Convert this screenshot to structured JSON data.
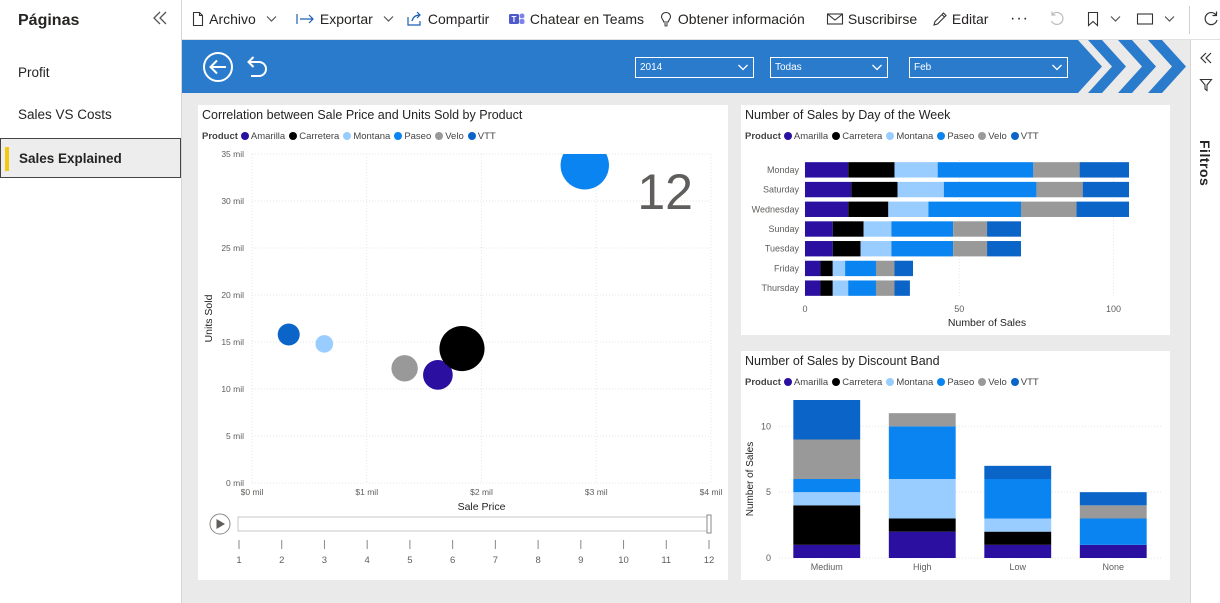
{
  "pages_pane": {
    "title": "Páginas",
    "items": [
      {
        "label": "Profit",
        "active": false
      },
      {
        "label": "Sales VS Costs",
        "active": false
      },
      {
        "label": "Sales Explained",
        "active": true
      }
    ]
  },
  "toolbar": {
    "file_label": "Archivo",
    "export_label": "Exportar",
    "share_label": "Compartir",
    "teams_label": "Chatear en Teams",
    "insights_label": "Obtener información",
    "subscribe_label": "Suscribirse",
    "edit_label": "Editar",
    "more_label": "···"
  },
  "slicers": {
    "year": "2014",
    "segment": "Todas",
    "month": "Feb"
  },
  "filters_label": "Filtros",
  "legend_title": "Product",
  "products": [
    {
      "name": "Amarilla",
      "color": "#2a0fa0"
    },
    {
      "name": "Carretera",
      "color": "#000000"
    },
    {
      "name": "Montana",
      "color": "#99ccff"
    },
    {
      "name": "Paseo",
      "color": "#0a84f0"
    },
    {
      "name": "Velo",
      "color": "#999999"
    },
    {
      "name": "VTT",
      "color": "#0b64c8"
    }
  ],
  "scatter": {
    "title": "Correlation between Sale Price and Units Sold by Product",
    "xlabel": "Sale Price",
    "ylabel": "Units Sold",
    "play_value": "12",
    "x_ticks": [
      "$0 mil",
      "$1 mil",
      "$2 mil",
      "$3 mil",
      "$4 mil"
    ],
    "y_ticks": [
      "0 mil",
      "5 mil",
      "10 mil",
      "15 mil",
      "20 mil",
      "25 mil",
      "30 mil",
      "35 mil"
    ],
    "timeline_ticks": [
      "1",
      "2",
      "3",
      "4",
      "5",
      "6",
      "7",
      "8",
      "9",
      "10",
      "11",
      "12"
    ]
  },
  "weekday_chart": {
    "title": "Number of Sales by Day of the Week",
    "xlabel": "Number of Sales",
    "x_ticks": [
      "0",
      "50",
      "100"
    ]
  },
  "discount_chart": {
    "title": "Number of Sales by Discount Band",
    "ylabel": "Number of Sales",
    "y_ticks": [
      "0",
      "5",
      "10"
    ]
  },
  "chart_data": [
    {
      "type": "scatter",
      "title": "Correlation between Sale Price and Units Sold by Product",
      "xlabel": "Sale Price",
      "ylabel": "Units Sold",
      "xlim": [
        0,
        4000000
      ],
      "ylim": [
        0,
        35000000
      ],
      "grid": true,
      "legend": "top",
      "points": [
        {
          "series": "VTT",
          "x": 320000,
          "y": 15800000,
          "size": 1.0
        },
        {
          "series": "Montana",
          "x": 630000,
          "y": 14800000,
          "size": 0.8
        },
        {
          "series": "Velo",
          "x": 1330000,
          "y": 12200000,
          "size": 1.2
        },
        {
          "series": "Amarilla",
          "x": 1620000,
          "y": 11500000,
          "size": 1.35
        },
        {
          "series": "Carretera",
          "x": 1830000,
          "y": 14300000,
          "size": 2.05
        },
        {
          "series": "Paseo",
          "x": 2900000,
          "y": 33800000,
          "size": 2.2
        }
      ]
    },
    {
      "type": "bar",
      "orientation": "horizontal",
      "stacked": true,
      "title": "Number of Sales by Day of the Week",
      "xlabel": "Number of Sales",
      "xlim": [
        0,
        105
      ],
      "grid": true,
      "legend": "top",
      "categories": [
        "Monday",
        "Saturday",
        "Wednesday",
        "Sunday",
        "Tuesday",
        "Friday",
        "Thursday"
      ],
      "series": [
        {
          "name": "Amarilla",
          "values": [
            14,
            15,
            14,
            9,
            9,
            5,
            5
          ]
        },
        {
          "name": "Carretera",
          "values": [
            15,
            15,
            13,
            10,
            9,
            4,
            4
          ]
        },
        {
          "name": "Montana",
          "values": [
            14,
            15,
            13,
            9,
            10,
            4,
            5
          ]
        },
        {
          "name": "Paseo",
          "values": [
            31,
            30,
            30,
            20,
            20,
            10,
            9
          ]
        },
        {
          "name": "Velo",
          "values": [
            15,
            15,
            18,
            11,
            11,
            6,
            6
          ]
        },
        {
          "name": "VTT",
          "values": [
            16,
            15,
            17,
            11,
            11,
            6,
            5
          ]
        }
      ]
    },
    {
      "type": "bar",
      "orientation": "vertical",
      "stacked": true,
      "title": "Number of Sales by Discount Band",
      "ylabel": "Number of Sales",
      "ylim": [
        0,
        12
      ],
      "grid": true,
      "legend": "top",
      "categories": [
        "Medium",
        "High",
        "Low",
        "None"
      ],
      "series": [
        {
          "name": "Amarilla",
          "values": [
            1,
            2,
            1,
            1
          ]
        },
        {
          "name": "Carretera",
          "values": [
            3,
            1,
            1,
            0
          ]
        },
        {
          "name": "Montana",
          "values": [
            1,
            3,
            1,
            0
          ]
        },
        {
          "name": "Paseo",
          "values": [
            1,
            4,
            3,
            2
          ]
        },
        {
          "name": "Velo",
          "values": [
            3,
            1,
            0,
            1
          ]
        },
        {
          "name": "VTT",
          "values": [
            3,
            0,
            1,
            1
          ]
        }
      ]
    }
  ]
}
